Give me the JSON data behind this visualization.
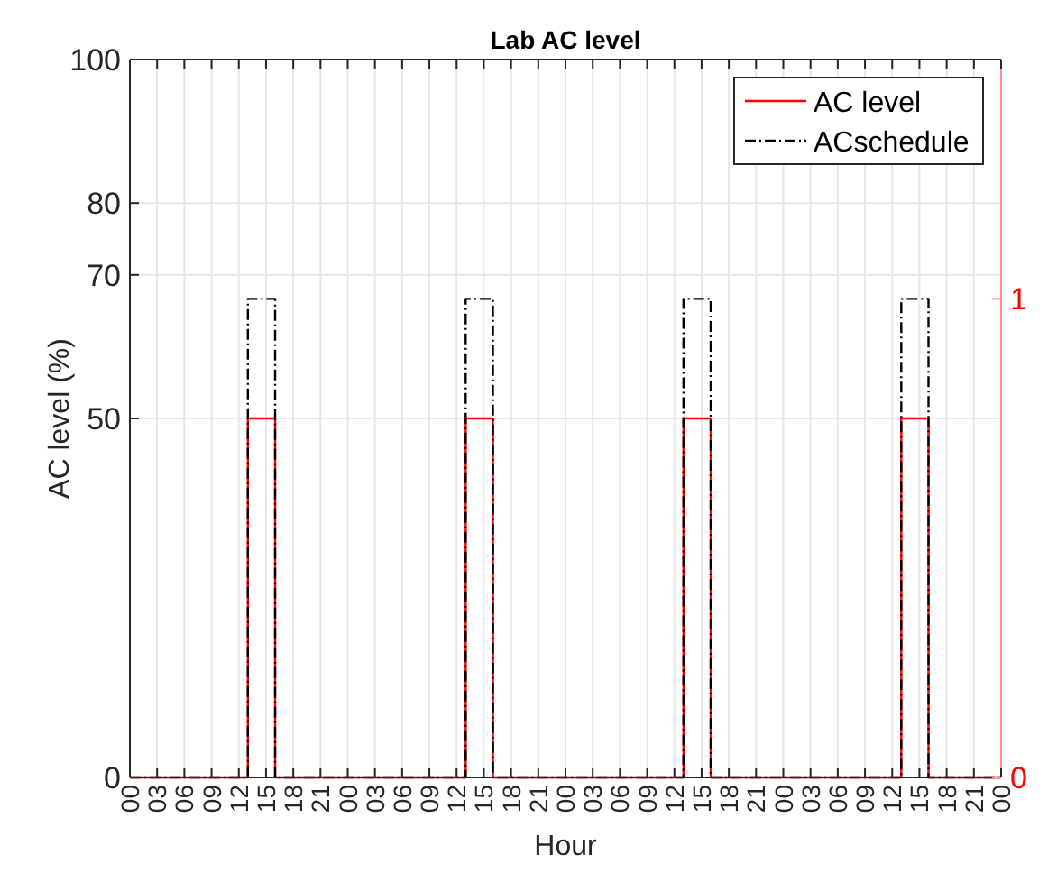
{
  "chart_data": {
    "type": "step",
    "title": "Lab AC level",
    "xlabel": "Hour",
    "ylabel": "AC level (%)",
    "x": [
      0,
      13,
      16,
      37,
      40,
      61,
      64,
      85,
      88,
      96
    ],
    "series": [
      {
        "name": "AC level",
        "color": "#ff0000",
        "values": [
          0,
          50,
          0,
          50,
          0,
          50,
          0,
          50,
          0,
          0
        ],
        "line_style": "solid"
      },
      {
        "name": "ACschedule",
        "color": "#000000",
        "values": [
          0,
          1,
          0,
          1,
          0,
          1,
          0,
          1,
          0,
          0
        ],
        "axis": "y2",
        "line_style": "dashed"
      }
    ],
    "xlim": [
      0,
      96
    ],
    "xticks": [
      {
        "value": 0,
        "label": "00"
      },
      {
        "value": 3,
        "label": "03"
      },
      {
        "value": 6,
        "label": "06"
      },
      {
        "value": 9,
        "label": "09"
      },
      {
        "value": 12,
        "label": "12"
      },
      {
        "value": 15,
        "label": "15"
      },
      {
        "value": 18,
        "label": "18"
      },
      {
        "value": 21,
        "label": "21"
      },
      {
        "value": 24,
        "label": "00"
      },
      {
        "value": 27,
        "label": "03"
      },
      {
        "value": 30,
        "label": "06"
      },
      {
        "value": 33,
        "label": "09"
      },
      {
        "value": 36,
        "label": "12"
      },
      {
        "value": 39,
        "label": "15"
      },
      {
        "value": 42,
        "label": "18"
      },
      {
        "value": 45,
        "label": "21"
      },
      {
        "value": 48,
        "label": "00"
      },
      {
        "value": 51,
        "label": "03"
      },
      {
        "value": 54,
        "label": "06"
      },
      {
        "value": 57,
        "label": "09"
      },
      {
        "value": 60,
        "label": "12"
      },
      {
        "value": 63,
        "label": "15"
      },
      {
        "value": 66,
        "label": "18"
      },
      {
        "value": 69,
        "label": "21"
      },
      {
        "value": 72,
        "label": "00"
      },
      {
        "value": 75,
        "label": "03"
      },
      {
        "value": 78,
        "label": "06"
      },
      {
        "value": 81,
        "label": "09"
      },
      {
        "value": 84,
        "label": "12"
      },
      {
        "value": 87,
        "label": "15"
      },
      {
        "value": 90,
        "label": "18"
      },
      {
        "value": 93,
        "label": "21"
      },
      {
        "value": 96,
        "label": "00"
      }
    ],
    "ylim": [
      0,
      100
    ],
    "yticks": [
      0,
      50,
      70,
      80,
      100
    ],
    "y2lim": [
      0,
      1.5
    ],
    "y2ticks": [
      0,
      1
    ],
    "grid": true,
    "legend": "top right"
  }
}
